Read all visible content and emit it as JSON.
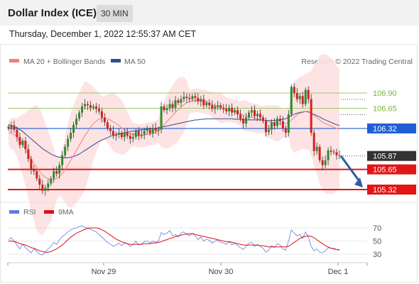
{
  "header": {
    "instrument": "Dollar Index (ICE)",
    "timeframe": "30 MIN",
    "timestamp": "Thursday, December 1, 2022 12:55:37 AM CET"
  },
  "legend": {
    "ma20": "MA 20 + Bollinger Bands",
    "ma50": "MA 50",
    "copyright": "Research © 2022 Trading Central",
    "rsi": "RSI",
    "rsi_ma": "9MA"
  },
  "colors": {
    "ma20": "#f08080",
    "ma50": "#2d4f8e",
    "bollinger_fill": "#fde0e0",
    "bull": "#2e8b2e",
    "bear": "#d42020",
    "green_line": "#9ccc65",
    "blue_line": "#1f5fd6",
    "red_line": "#e31515",
    "arrow": "#2f5d9e",
    "rsi": "#5b7fe0",
    "rsi_ma": "#e01010"
  },
  "chart_data": [
    {
      "type": "candlestick",
      "ylim": [
        104.9,
        107.2
      ],
      "x_tick_labels": [
        "Nov 29",
        "Nov 30",
        "Dec 1"
      ],
      "levels": [
        {
          "value": 106.9,
          "label": "106.90",
          "style": "resistance"
        },
        {
          "value": 106.65,
          "label": "106.65",
          "style": "resistance"
        },
        {
          "value": 106.32,
          "label": "106.32",
          "style": "pivot"
        },
        {
          "value": 105.87,
          "label": "105.87",
          "style": "last_price"
        },
        {
          "value": 105.65,
          "label": "105.65",
          "style": "support"
        },
        {
          "value": 105.32,
          "label": "105.32",
          "style": "support"
        }
      ],
      "close": [
        106.32,
        106.37,
        106.3,
        106.18,
        106.05,
        106.12,
        105.98,
        105.82,
        105.65,
        105.62,
        105.5,
        105.4,
        105.3,
        105.35,
        105.42,
        105.5,
        105.62,
        105.58,
        105.72,
        105.88,
        106.02,
        106.15,
        106.25,
        106.38,
        106.48,
        106.58,
        106.68,
        106.72,
        106.7,
        106.66,
        106.68,
        106.64,
        106.6,
        106.5,
        106.42,
        106.32,
        106.28,
        106.2,
        106.22,
        106.25,
        106.18,
        106.25,
        106.2,
        106.15,
        106.18,
        106.28,
        106.2,
        106.22,
        106.28,
        106.3,
        106.24,
        106.33,
        106.28,
        106.3,
        106.68,
        106.62,
        106.65,
        106.72,
        106.66,
        106.78,
        106.74,
        106.8,
        106.84,
        106.82,
        106.8,
        106.85,
        106.82,
        106.76,
        106.8,
        106.7,
        106.74,
        106.7,
        106.64,
        106.68,
        106.7,
        106.66,
        106.64,
        106.6,
        106.66,
        106.58,
        106.62,
        106.55,
        106.48,
        106.4,
        106.5,
        106.58,
        106.62,
        106.52,
        106.56,
        106.5,
        106.44,
        106.26,
        106.3,
        106.42,
        106.36,
        106.48,
        106.44,
        106.32,
        106.25,
        106.55,
        107.0,
        106.9,
        106.8,
        106.85,
        106.72,
        106.95,
        106.8,
        106.25,
        105.95,
        106.02,
        105.8,
        105.72,
        105.8,
        105.96,
        105.94,
        105.93,
        105.88,
        105.87
      ],
      "ma20": [
        106.25,
        106.24,
        106.22,
        106.18,
        106.12,
        106.05,
        105.98,
        105.9,
        105.82,
        105.75,
        105.68,
        105.62,
        105.56,
        105.52,
        105.5,
        105.48,
        105.48,
        105.5,
        105.53,
        105.58,
        105.65,
        105.72,
        105.8,
        105.88,
        105.96,
        106.04,
        106.12,
        106.2,
        106.27,
        106.34,
        106.4,
        106.44,
        106.47,
        106.49,
        106.49,
        106.48,
        106.46,
        106.43,
        106.4,
        106.37,
        106.33,
        106.3,
        106.27,
        106.24,
        106.22,
        106.21,
        106.2,
        106.2,
        106.21,
        106.22,
        106.23,
        106.24,
        106.25,
        106.28,
        106.33,
        106.38,
        106.43,
        106.48,
        106.53,
        106.58,
        106.63,
        106.67,
        106.71,
        106.74,
        106.76,
        106.77,
        106.78,
        106.78,
        106.77,
        106.76,
        106.75,
        106.73,
        106.71,
        106.69,
        106.67,
        106.65,
        106.64,
        106.63,
        106.62,
        106.61,
        106.6,
        106.58,
        106.56,
        106.54,
        106.52,
        106.51,
        106.5,
        106.49,
        106.48,
        106.47,
        106.46,
        106.44,
        106.43,
        106.42,
        106.41,
        106.4,
        106.4,
        106.4,
        106.4,
        106.42,
        106.46,
        106.5,
        106.54,
        106.57,
        106.58,
        106.6,
        106.6,
        106.57,
        106.53,
        106.5,
        106.46,
        106.42,
        106.4,
        106.38,
        106.36,
        106.34,
        106.32,
        106.31
      ],
      "ma50": [
        106.38,
        106.37,
        106.35,
        106.33,
        106.3,
        106.27,
        106.23,
        106.19,
        106.15,
        106.11,
        106.07,
        106.03,
        105.99,
        105.96,
        105.93,
        105.9,
        105.88,
        105.86,
        105.85,
        105.84,
        105.84,
        105.84,
        105.85,
        105.86,
        105.88,
        105.9,
        105.93,
        105.96,
        105.99,
        106.02,
        106.05,
        106.08,
        106.11,
        106.13,
        106.15,
        106.17,
        106.19,
        106.21,
        106.22,
        106.23,
        106.24,
        106.25,
        106.26,
        106.27,
        106.28,
        106.28,
        106.29,
        106.3,
        106.3,
        106.31,
        106.31,
        106.32,
        106.32,
        106.33,
        106.34,
        106.35,
        106.36,
        106.37,
        106.38,
        106.39,
        106.4,
        106.41,
        106.42,
        106.43,
        106.44,
        106.45,
        106.46,
        106.46,
        106.47,
        106.47,
        106.48,
        106.48,
        106.48,
        106.48,
        106.48,
        106.48,
        106.48,
        106.48,
        106.48,
        106.48,
        106.47,
        106.47,
        106.47,
        106.46,
        106.46,
        106.46,
        106.46,
        106.46,
        106.46,
        106.46,
        106.46,
        106.45,
        106.45,
        106.45,
        106.45,
        106.45,
        106.46,
        106.47,
        106.48,
        106.5,
        106.53,
        106.55,
        106.57,
        106.58,
        106.59,
        106.6,
        106.59,
        106.57,
        106.55,
        106.53,
        106.51,
        106.48,
        106.46,
        106.44,
        106.42,
        106.4,
        106.38,
        106.37
      ]
    },
    {
      "type": "line",
      "title": "RSI",
      "ylim": [
        20,
        80
      ],
      "y_ticks": [
        70,
        50,
        30
      ],
      "rsi": [
        52,
        55,
        50,
        44,
        38,
        45,
        40,
        36,
        32,
        38,
        34,
        30,
        29,
        33,
        38,
        42,
        48,
        45,
        52,
        57,
        60,
        64,
        67,
        69,
        70,
        72,
        73,
        71,
        70,
        68,
        66,
        64,
        60,
        56,
        52,
        48,
        45,
        42,
        44,
        47,
        43,
        48,
        46,
        42,
        44,
        50,
        44,
        46,
        49,
        50,
        47,
        50,
        48,
        50,
        63,
        60,
        62,
        66,
        58,
        60,
        56,
        62,
        64,
        60,
        58,
        62,
        58,
        52,
        56,
        50,
        53,
        51,
        47,
        50,
        51,
        48,
        47,
        45,
        49,
        44,
        47,
        43,
        40,
        37,
        42,
        47,
        48,
        42,
        45,
        42,
        39,
        33,
        36,
        43,
        40,
        46,
        44,
        38,
        36,
        50,
        67,
        62,
        58,
        60,
        54,
        64,
        56,
        42,
        35,
        38,
        33,
        32,
        35,
        40,
        39,
        39,
        37,
        37
      ],
      "rsi_ma": [
        50,
        50,
        49,
        48,
        46,
        45,
        44,
        42,
        40,
        39,
        37,
        35,
        34,
        33,
        33,
        34,
        36,
        38,
        41,
        44,
        48,
        52,
        56,
        59,
        62,
        64,
        66,
        68,
        69,
        70,
        70,
        70,
        69,
        67,
        65,
        62,
        59,
        56,
        53,
        51,
        49,
        47,
        46,
        45,
        45,
        45,
        45,
        45,
        46,
        46,
        46,
        47,
        47,
        48,
        49,
        51,
        52,
        54,
        55,
        57,
        58,
        59,
        60,
        61,
        61,
        61,
        60,
        59,
        58,
        57,
        56,
        55,
        54,
        53,
        52,
        51,
        50,
        49,
        49,
        48,
        47,
        46,
        45,
        44,
        44,
        44,
        44,
        44,
        44,
        43,
        43,
        42,
        41,
        41,
        41,
        41,
        41,
        41,
        41,
        42,
        45,
        48,
        51,
        54,
        56,
        57,
        58,
        57,
        55,
        52,
        49,
        46,
        43,
        41,
        39,
        38,
        37,
        36
      ]
    }
  ]
}
